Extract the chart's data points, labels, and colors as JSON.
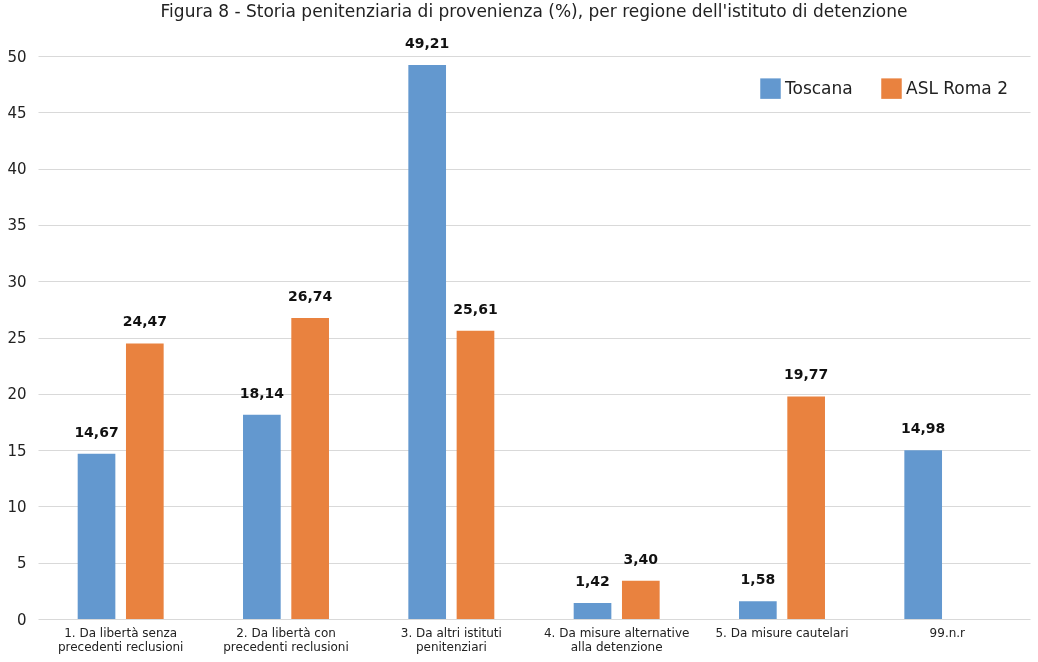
{
  "chart_data": {
    "type": "bar",
    "title": "Figura 8 - Storia penitenziaria di provenienza (%), per regione dell'istituto di detenzione",
    "categories": [
      "1. Da libertà senza precedenti reclusioni",
      "2. Da libertà con precedenti reclusioni",
      "3. Da altri istituti penitenziari",
      "4. Da misure alternative alla detenzione",
      "5. Da misure cautelari",
      "99.n.r"
    ],
    "series": [
      {
        "name": "Toscana",
        "color": "#6398cf",
        "values": [
          14.67,
          18.14,
          49.21,
          1.42,
          1.58,
          14.98
        ],
        "value_labels": [
          "14,67",
          "18,14",
          "49,21",
          "1,42",
          "1,58",
          "14,98"
        ]
      },
      {
        "name": "ASL Roma 2",
        "color": "#e9823f",
        "values": [
          24.47,
          26.74,
          25.61,
          3.4,
          19.77,
          null
        ],
        "value_labels": [
          "24,47",
          "26,74",
          "25,61",
          "3,40",
          "19,77",
          null
        ]
      }
    ],
    "ylim": [
      0,
      50
    ],
    "yticks": [
      0,
      5,
      10,
      15,
      20,
      25,
      30,
      35,
      40,
      45,
      50
    ],
    "grid": "y",
    "legend": "top right"
  }
}
